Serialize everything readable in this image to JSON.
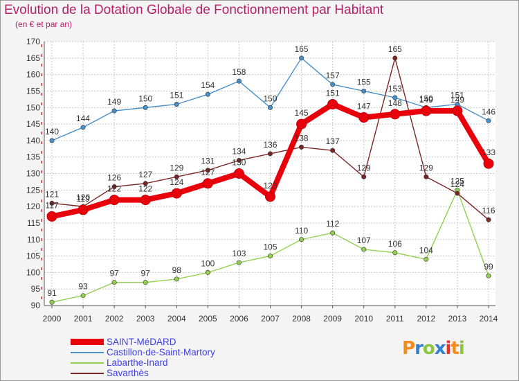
{
  "header": {
    "title": "Evolution de la Dotation Globale de Fonctionnement par Habitant",
    "subtitle": "(en € et par an)"
  },
  "logo": {
    "text": "Proxiti",
    "colors": [
      "#f28c1e",
      "#2e7fd6",
      "#8cc63f",
      "#2e7fd6",
      "#e5322d",
      "#f28c1e",
      "#8cc63f"
    ]
  },
  "chart_data": {
    "type": "line",
    "title": "Evolution de la Dotation Globale de Fonctionnement par Habitant",
    "ylabel": "(en € et par an)",
    "xlabel": "",
    "categories": [
      "2000",
      "2001",
      "2002",
      "2003",
      "2004",
      "2005",
      "2006",
      "2007",
      "2008",
      "2009",
      "2010",
      "2011",
      "2012",
      "2013",
      "2014"
    ],
    "ylim": [
      90,
      170
    ],
    "yticks": [
      90,
      95,
      100,
      105,
      110,
      115,
      120,
      125,
      130,
      135,
      140,
      145,
      150,
      155,
      160,
      165,
      170
    ],
    "grid": true,
    "legend_position": "bottom-left",
    "series": [
      {
        "name": "SAINT-MéDARD",
        "color": "#e8000b",
        "bold": true,
        "values": [
          117,
          119,
          122,
          122,
          124,
          127,
          130,
          123,
          145,
          151,
          147,
          148,
          149,
          149,
          133
        ]
      },
      {
        "name": "Castillon-de-Saint-Martory",
        "color": "#4a90c8",
        "bold": false,
        "values": [
          140,
          144,
          149,
          150,
          151,
          154,
          158,
          150,
          165,
          157,
          155,
          153,
          150,
          151,
          146
        ]
      },
      {
        "name": "Labarthe-Inard",
        "color": "#92d050",
        "bold": false,
        "values": [
          91,
          93,
          97,
          97,
          98,
          100,
          103,
          105,
          110,
          112,
          107,
          106,
          104,
          125,
          99
        ]
      },
      {
        "name": "Savarthès",
        "color": "#7a2424",
        "bold": false,
        "values": [
          121,
          120,
          126,
          127,
          129,
          131,
          134,
          136,
          138,
          137,
          129,
          165,
          129,
          124,
          116
        ]
      }
    ]
  }
}
